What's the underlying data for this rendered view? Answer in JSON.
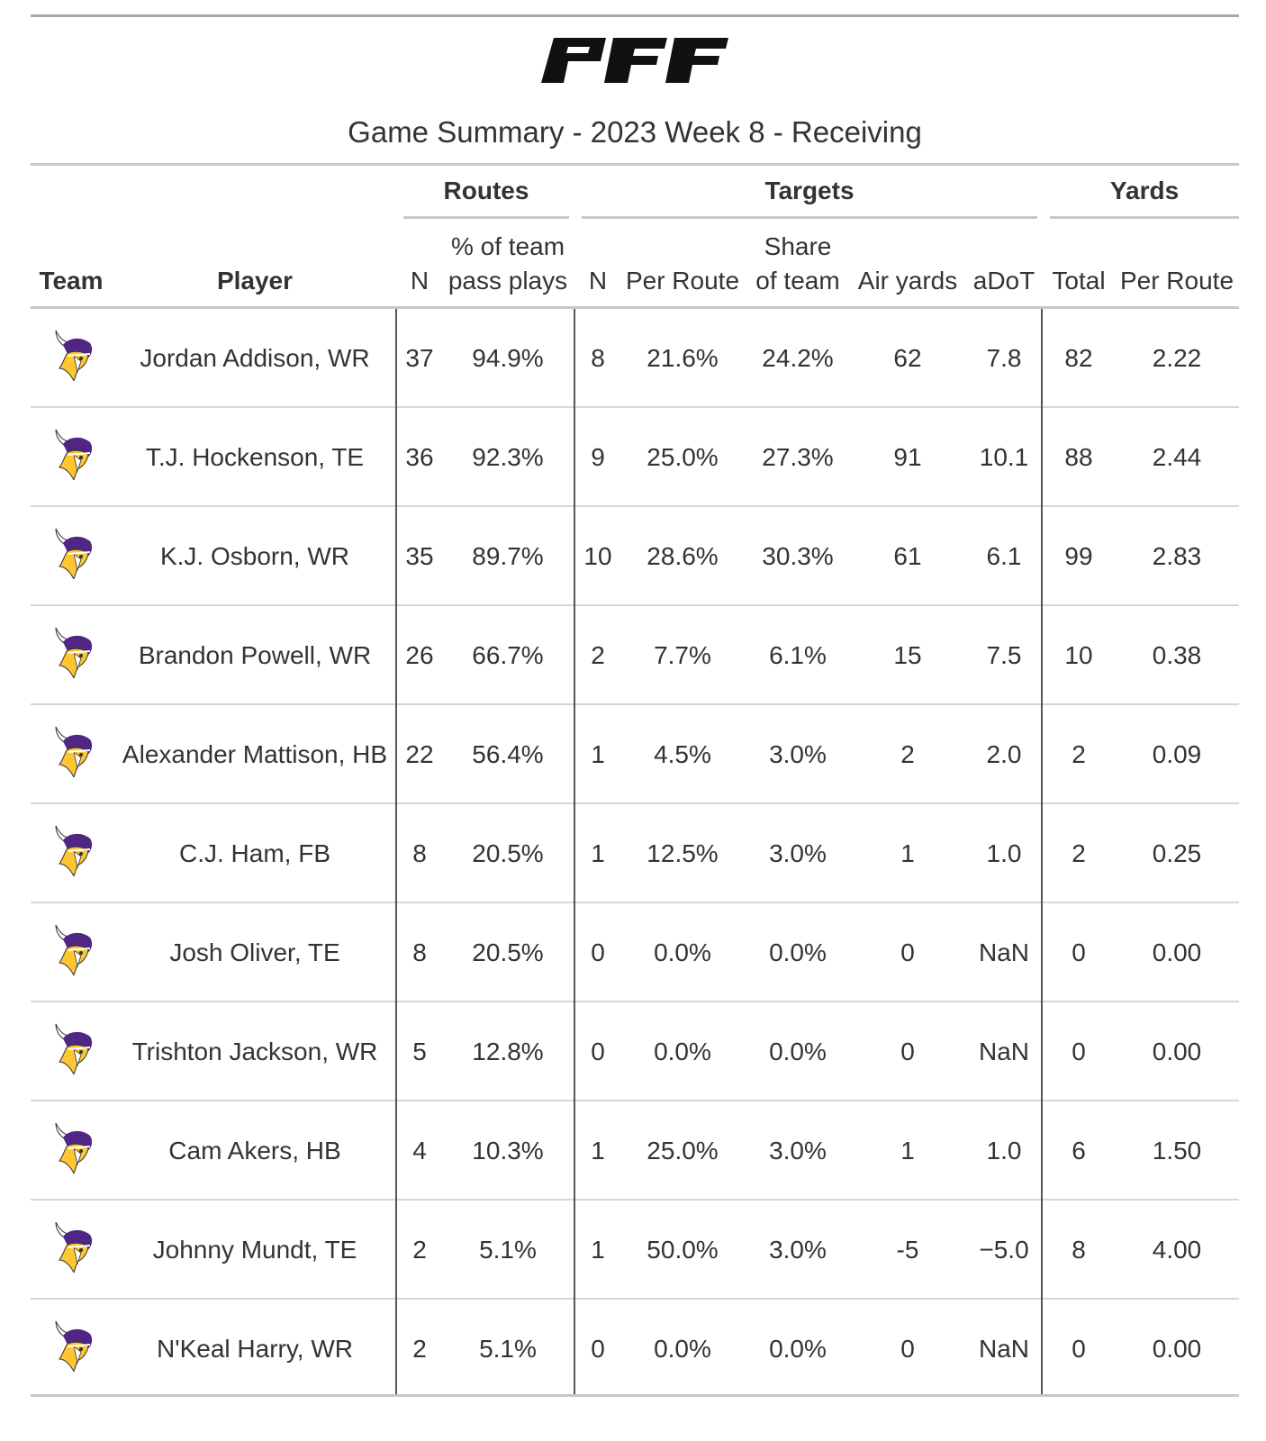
{
  "logo_text": "PFF",
  "title": "Game Summary - 2023 Week 8 - Receiving",
  "column_groups": {
    "routes": "Routes",
    "targets": "Targets",
    "yards": "Yards"
  },
  "columns": {
    "team": "Team",
    "player": "Player",
    "routes_n": "N",
    "routes_pct_line1": "% of team",
    "routes_pct_line2": "pass plays",
    "targets_n": "N",
    "targets_per_route": "Per Route",
    "targets_share_line1": "Share",
    "targets_share_line2": "of team",
    "air_yards": "Air yards",
    "adot": "aDoT",
    "yards_total": "Total",
    "yards_per_route": "Per Route"
  },
  "colors": {
    "vikings_purple": "#4F2683",
    "vikings_gold": "#FFC62F"
  },
  "rows": [
    {
      "team_icon": "vikings-logo-icon",
      "player": "Jordan Addison, WR",
      "routes_n": "37",
      "routes_pct": "94.9%",
      "targets_n": "8",
      "targets_per_route": "21.6%",
      "targets_share": "24.2%",
      "air_yards": "62",
      "adot": "7.8",
      "yards_total": "82",
      "yards_per_route": "2.22"
    },
    {
      "team_icon": "vikings-logo-icon",
      "player": "T.J. Hockenson, TE",
      "routes_n": "36",
      "routes_pct": "92.3%",
      "targets_n": "9",
      "targets_per_route": "25.0%",
      "targets_share": "27.3%",
      "air_yards": "91",
      "adot": "10.1",
      "yards_total": "88",
      "yards_per_route": "2.44"
    },
    {
      "team_icon": "vikings-logo-icon",
      "player": "K.J. Osborn, WR",
      "routes_n": "35",
      "routes_pct": "89.7%",
      "targets_n": "10",
      "targets_per_route": "28.6%",
      "targets_share": "30.3%",
      "air_yards": "61",
      "adot": "6.1",
      "yards_total": "99",
      "yards_per_route": "2.83"
    },
    {
      "team_icon": "vikings-logo-icon",
      "player": "Brandon Powell, WR",
      "routes_n": "26",
      "routes_pct": "66.7%",
      "targets_n": "2",
      "targets_per_route": "7.7%",
      "targets_share": "6.1%",
      "air_yards": "15",
      "adot": "7.5",
      "yards_total": "10",
      "yards_per_route": "0.38"
    },
    {
      "team_icon": "vikings-logo-icon",
      "player": "Alexander Mattison, HB",
      "routes_n": "22",
      "routes_pct": "56.4%",
      "targets_n": "1",
      "targets_per_route": "4.5%",
      "targets_share": "3.0%",
      "air_yards": "2",
      "adot": "2.0",
      "yards_total": "2",
      "yards_per_route": "0.09"
    },
    {
      "team_icon": "vikings-logo-icon",
      "player": "C.J. Ham, FB",
      "routes_n": "8",
      "routes_pct": "20.5%",
      "targets_n": "1",
      "targets_per_route": "12.5%",
      "targets_share": "3.0%",
      "air_yards": "1",
      "adot": "1.0",
      "yards_total": "2",
      "yards_per_route": "0.25"
    },
    {
      "team_icon": "vikings-logo-icon",
      "player": "Josh Oliver, TE",
      "routes_n": "8",
      "routes_pct": "20.5%",
      "targets_n": "0",
      "targets_per_route": "0.0%",
      "targets_share": "0.0%",
      "air_yards": "0",
      "adot": "NaN",
      "yards_total": "0",
      "yards_per_route": "0.00"
    },
    {
      "team_icon": "vikings-logo-icon",
      "player": "Trishton Jackson, WR",
      "routes_n": "5",
      "routes_pct": "12.8%",
      "targets_n": "0",
      "targets_per_route": "0.0%",
      "targets_share": "0.0%",
      "air_yards": "0",
      "adot": "NaN",
      "yards_total": "0",
      "yards_per_route": "0.00"
    },
    {
      "team_icon": "vikings-logo-icon",
      "player": "Cam Akers, HB",
      "routes_n": "4",
      "routes_pct": "10.3%",
      "targets_n": "1",
      "targets_per_route": "25.0%",
      "targets_share": "3.0%",
      "air_yards": "1",
      "adot": "1.0",
      "yards_total": "6",
      "yards_per_route": "1.50"
    },
    {
      "team_icon": "vikings-logo-icon",
      "player": "Johnny Mundt, TE",
      "routes_n": "2",
      "routes_pct": "5.1%",
      "targets_n": "1",
      "targets_per_route": "50.0%",
      "targets_share": "3.0%",
      "air_yards": "-5",
      "adot": "−5.0",
      "yards_total": "8",
      "yards_per_route": "4.00"
    },
    {
      "team_icon": "vikings-logo-icon",
      "player": "N'Keal Harry, WR",
      "routes_n": "2",
      "routes_pct": "5.1%",
      "targets_n": "0",
      "targets_per_route": "0.0%",
      "targets_share": "0.0%",
      "air_yards": "0",
      "adot": "NaN",
      "yards_total": "0",
      "yards_per_route": "0.00"
    }
  ]
}
